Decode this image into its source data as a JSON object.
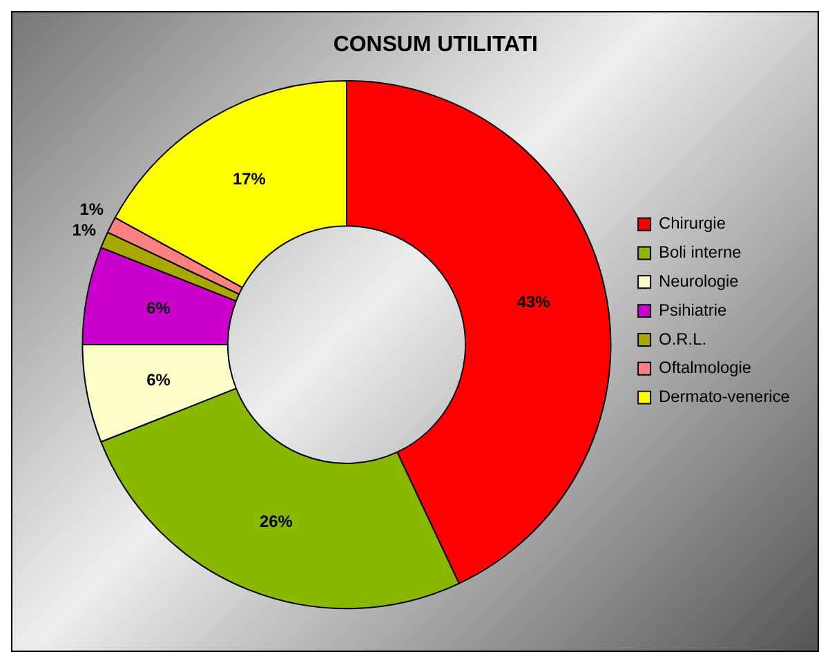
{
  "chart_data": {
    "type": "donut",
    "title": "CONSUM UTILITATI",
    "categories": [
      "Chirurgie",
      "Boli interne",
      "Neurologie",
      "Psihiatrie",
      "O.R.L.",
      "Oftalmologie",
      "Dermato-venerice"
    ],
    "values": [
      43,
      26,
      6,
      6,
      1,
      1,
      17
    ],
    "value_labels": [
      "43%",
      "26%",
      "6%",
      "6%",
      "1%",
      "1%",
      "17%"
    ],
    "colors": [
      "#ff0000",
      "#88b800",
      "#ffffcc",
      "#cc00cc",
      "#a8a800",
      "#ff8080",
      "#ffff00"
    ],
    "legend": "right"
  }
}
